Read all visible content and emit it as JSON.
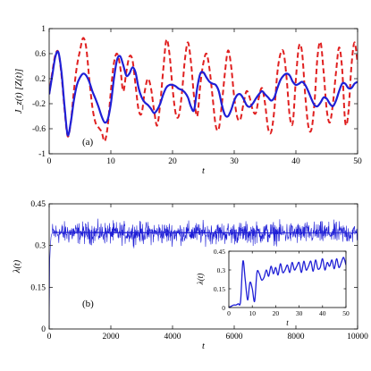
{
  "chart_data": [
    {
      "type": "line",
      "panel_label": "(a)",
      "xlabel": "t",
      "ylabel": "J_z(t) [Z(t)]",
      "xlim": [
        0,
        50
      ],
      "ylim": [
        -1,
        1
      ],
      "xticks": [
        "0",
        "10",
        "20",
        "30",
        "40",
        "50"
      ],
      "yticks": [
        "1",
        "0.6",
        "0.2",
        "-0.2",
        "-0.6",
        "-1"
      ],
      "xtick_values": [
        0,
        10,
        20,
        30,
        40,
        50
      ],
      "ytick_values": [
        1,
        0.6,
        0.2,
        -0.2,
        -0.6,
        -1
      ],
      "series": [
        {
          "style": "solid",
          "color": "#1f1fd6",
          "x": [
            0,
            0.5,
            1,
            1.5,
            2,
            2.5,
            3,
            3.5,
            4,
            4.5,
            5,
            5.5,
            6,
            6.5,
            7,
            7.5,
            8,
            8.5,
            9,
            9.5,
            10,
            10.5,
            11,
            11.5,
            12,
            12.5,
            13,
            13.5,
            14,
            14.5,
            15,
            15.5,
            16,
            16.5,
            17,
            17.5,
            18,
            18.5,
            19,
            19.5,
            20,
            20.5,
            21,
            21.5,
            22,
            22.5,
            23,
            23.5,
            24,
            24.5,
            25,
            25.5,
            26,
            26.5,
            27,
            27.5,
            28,
            28.5,
            29,
            29.5,
            30,
            30.5,
            31,
            31.5,
            32,
            32.5,
            33,
            33.5,
            34,
            34.5,
            35,
            35.5,
            36,
            36.5,
            37,
            37.5,
            38,
            38.5,
            39,
            39.5,
            40,
            40.5,
            41,
            41.5,
            42,
            42.5,
            43,
            43.5,
            44,
            44.5,
            45,
            45.5,
            46,
            46.5,
            47,
            47.5,
            48,
            48.5,
            49,
            49.5,
            50
          ],
          "y": [
            -0.05,
            0.25,
            0.55,
            0.62,
            0.3,
            -0.25,
            -0.7,
            -0.5,
            -0.15,
            0.1,
            0.22,
            0.28,
            0.25,
            0.15,
            0.0,
            -0.12,
            -0.25,
            -0.4,
            -0.5,
            -0.45,
            -0.2,
            0.2,
            0.5,
            0.56,
            0.42,
            0.25,
            0.28,
            0.38,
            0.3,
            0.05,
            -0.1,
            -0.18,
            -0.22,
            -0.28,
            -0.35,
            -0.3,
            -0.2,
            -0.05,
            0.06,
            0.1,
            0.1,
            0.08,
            0.04,
            0.02,
            -0.02,
            -0.1,
            -0.25,
            -0.3,
            0.05,
            0.28,
            0.3,
            0.22,
            0.15,
            0.12,
            0.1,
            0.0,
            -0.22,
            -0.38,
            -0.4,
            -0.3,
            -0.15,
            -0.06,
            -0.05,
            -0.12,
            -0.22,
            -0.25,
            -0.2,
            -0.12,
            -0.05,
            0.0,
            -0.05,
            -0.1,
            -0.15,
            -0.1,
            0.05,
            0.18,
            0.25,
            0.28,
            0.25,
            0.15,
            0.1,
            0.12,
            0.15,
            0.1,
            0.0,
            -0.12,
            -0.22,
            -0.24,
            -0.18,
            -0.1,
            -0.12,
            -0.2,
            -0.24,
            -0.15,
            0.0,
            0.12,
            0.12,
            0.05,
            0.05,
            0.12,
            0.15
          ]
        },
        {
          "style": "dashed",
          "color": "#e02020",
          "x": [
            0,
            0.5,
            1,
            1.5,
            2,
            2.5,
            3,
            3.5,
            4,
            4.5,
            5,
            5.5,
            6,
            6.5,
            7,
            7.5,
            8,
            8.5,
            9,
            9.5,
            10,
            10.5,
            11,
            11.5,
            12,
            12.5,
            13,
            13.5,
            14,
            14.5,
            15,
            15.5,
            16,
            16.5,
            17,
            17.5,
            18,
            18.5,
            19,
            19.5,
            20,
            20.5,
            21,
            21.5,
            22,
            22.5,
            23,
            23.5,
            24,
            24.5,
            25,
            25.5,
            26,
            26.5,
            27,
            27.5,
            28,
            28.5,
            29,
            29.5,
            30,
            30.5,
            31,
            31.5,
            32,
            32.5,
            33,
            33.5,
            34,
            34.5,
            35,
            35.5,
            36,
            36.5,
            37,
            37.5,
            38,
            38.5,
            39,
            39.5,
            40,
            40.5,
            41,
            41.5,
            42,
            42.5,
            43,
            43.5,
            44,
            44.5,
            45,
            45.5,
            46,
            46.5,
            47,
            47.5,
            48,
            48.5,
            49,
            49.5,
            50
          ],
          "y": [
            -0.05,
            0.3,
            0.58,
            0.62,
            0.25,
            -0.3,
            -0.72,
            -0.5,
            0.0,
            0.4,
            0.65,
            0.85,
            0.7,
            0.2,
            -0.25,
            -0.5,
            -0.58,
            -0.65,
            -0.8,
            -0.55,
            0.0,
            0.45,
            0.6,
            0.4,
            0.0,
            0.3,
            0.55,
            0.5,
            0.1,
            -0.3,
            -0.35,
            0.0,
            0.2,
            0.05,
            -0.3,
            -0.55,
            -0.2,
            0.35,
            0.82,
            0.6,
            0.05,
            -0.35,
            -0.4,
            -0.05,
            0.5,
            0.78,
            0.45,
            -0.1,
            -0.4,
            0.1,
            0.45,
            0.6,
            0.35,
            -0.1,
            -0.55,
            -0.6,
            -0.2,
            0.3,
            0.65,
            0.4,
            -0.1,
            -0.42,
            -0.45,
            -0.2,
            0.0,
            -0.1,
            -0.3,
            -0.35,
            -0.1,
            0.05,
            -0.2,
            -0.6,
            -0.65,
            -0.3,
            0.3,
            0.6,
            0.62,
            0.2,
            -0.4,
            -0.5,
            0.2,
            0.72,
            0.62,
            -0.05,
            -0.55,
            -0.62,
            -0.2,
            0.55,
            0.78,
            0.3,
            -0.3,
            -0.5,
            -0.2,
            0.3,
            0.7,
            0.35,
            -0.5,
            -0.35,
            0.4,
            0.78,
            0.45
          ]
        }
      ]
    },
    {
      "type": "line",
      "panel_label": "(b)",
      "xlabel": "t",
      "ylabel": "λ(t)",
      "xlim": [
        0,
        10000
      ],
      "ylim": [
        0,
        0.45
      ],
      "xticks": [
        "0",
        "2000",
        "4000",
        "6000",
        "8000",
        "10000"
      ],
      "yticks": [
        "0.45",
        "0.3",
        "0.15",
        "0"
      ],
      "xtick_values": [
        0,
        2000,
        4000,
        6000,
        8000,
        10000
      ],
      "ytick_values": [
        0.45,
        0.3,
        0.15,
        0
      ],
      "series": [
        {
          "style": "solid",
          "color": "#1f1fd6",
          "description_values": {
            "mean": 0.345,
            "band_min": 0.3,
            "band_max": 0.4,
            "initial": 0.0,
            "rise_time": 50
          },
          "x": [
            0,
            20,
            40,
            60,
            80,
            100,
            10000
          ],
          "y": [
            0.0,
            0.25,
            0.3,
            0.33,
            0.34,
            0.345,
            0.345
          ]
        }
      ],
      "inset": {
        "xlabel": "t",
        "ylabel": "λ(t)",
        "xlim": [
          0,
          50
        ],
        "ylim": [
          0,
          0.45
        ],
        "xticks": [
          "0",
          "10",
          "20",
          "30",
          "40",
          "50"
        ],
        "yticks": [
          "0.45",
          "0.3",
          "0.15",
          "0"
        ],
        "xtick_values": [
          0,
          10,
          20,
          30,
          40,
          50
        ],
        "ytick_values": [
          0.45,
          0.3,
          0.15,
          0
        ],
        "series": [
          {
            "style": "solid",
            "color": "#1f1fd6",
            "x": [
              0,
              1,
              2,
              3,
              4,
              5,
              6,
              7,
              8,
              9,
              10,
              11,
              12,
              13,
              14,
              15,
              16,
              17,
              18,
              19,
              20,
              21,
              22,
              23,
              24,
              25,
              26,
              27,
              28,
              29,
              30,
              31,
              32,
              33,
              34,
              35,
              36,
              37,
              38,
              39,
              40,
              41,
              42,
              43,
              44,
              45,
              46,
              47,
              48,
              49,
              50
            ],
            "y": [
              0.0,
              0.01,
              0.02,
              0.02,
              0.03,
              0.05,
              0.37,
              0.22,
              0.06,
              0.2,
              0.15,
              0.05,
              0.28,
              0.27,
              0.22,
              0.24,
              0.3,
              0.25,
              0.33,
              0.27,
              0.32,
              0.26,
              0.35,
              0.28,
              0.3,
              0.34,
              0.28,
              0.36,
              0.3,
              0.33,
              0.36,
              0.28,
              0.37,
              0.3,
              0.33,
              0.37,
              0.29,
              0.38,
              0.31,
              0.32,
              0.39,
              0.3,
              0.36,
              0.33,
              0.38,
              0.31,
              0.39,
              0.32,
              0.36,
              0.4,
              0.34
            ]
          }
        ]
      }
    }
  ]
}
